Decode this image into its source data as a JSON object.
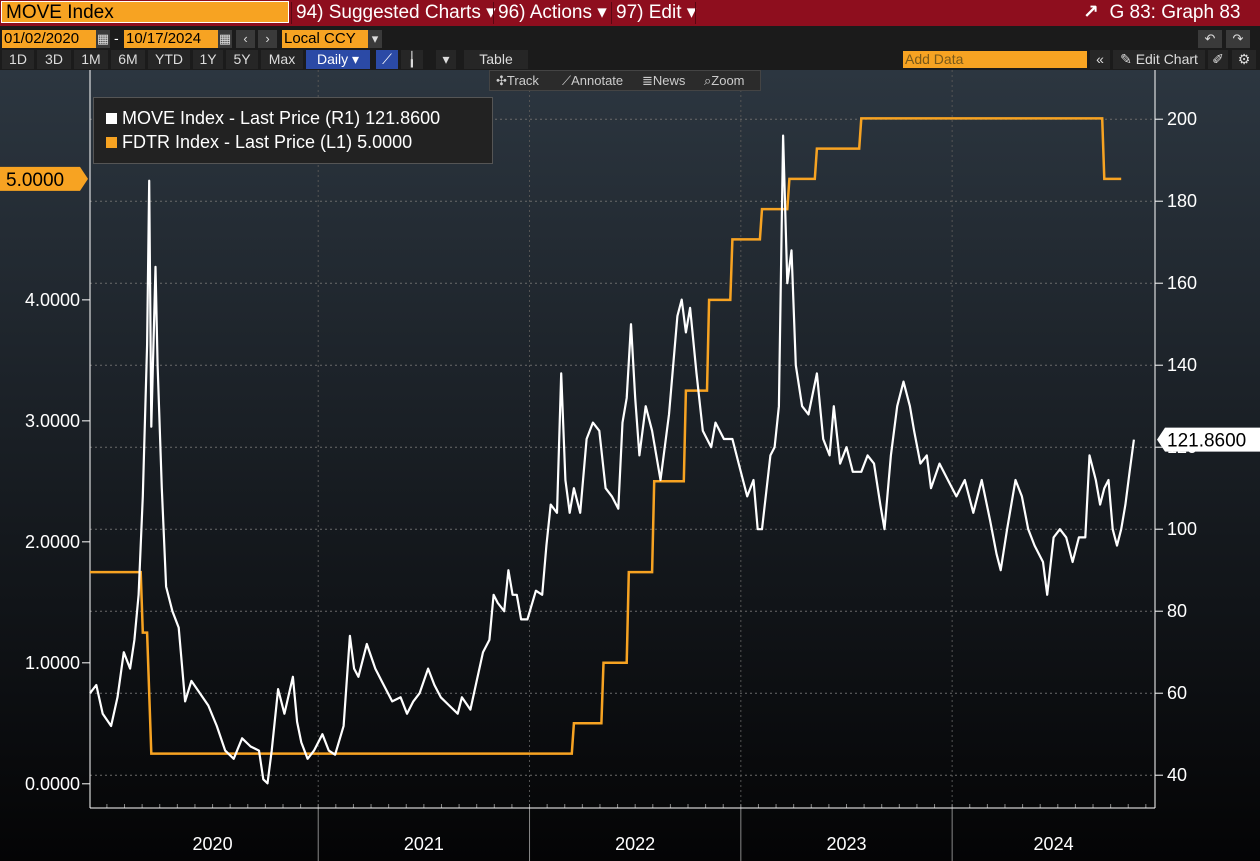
{
  "toolbar": {
    "command": "MOVE Index",
    "suggested": "94) Suggested Charts",
    "actions": "96) Actions",
    "edit": "97) Edit",
    "graph": "G 83: Graph 83",
    "start_date": "01/02/2020",
    "end_date": "10/17/2024",
    "dash": "-",
    "currency": "Local CCY",
    "periods": [
      "1D",
      "3D",
      "1M",
      "6M",
      "YTD",
      "1Y",
      "5Y",
      "Max"
    ],
    "frequency": "Daily",
    "table": "Table",
    "add_data_placeholder": "Add Data",
    "edit_chart": "Edit Chart",
    "tools": [
      "Track",
      "Annotate",
      "News",
      "Zoom"
    ]
  },
  "colors": {
    "move": "#ffffff",
    "fdtr": "#f7a322",
    "background": "#000000",
    "grid": "#666666"
  },
  "chart_data": {
    "type": "line",
    "legend": [
      {
        "text": "MOVE Index - Last Price (R1) 121.8600",
        "color": "#ffffff"
      },
      {
        "text": "FDTR Index - Last Price (L1) 5.0000",
        "color": "#f7a322"
      }
    ],
    "last_labels": {
      "left": "5.0000",
      "right": "121.8600"
    },
    "left_axis": {
      "range": [
        -0.2,
        5.9
      ],
      "ticks": [
        "0.0000",
        "1.0000",
        "2.0000",
        "3.0000",
        "4.0000"
      ]
    },
    "right_axis": {
      "range": [
        32,
        212
      ],
      "ticks": [
        "40",
        "60",
        "80",
        "100",
        "120",
        "140",
        "160",
        "180",
        "200"
      ]
    },
    "x_range": [
      2019.92,
      2024.96
    ],
    "x_labels": [
      "2020",
      "2021",
      "2022",
      "2023",
      "2024"
    ],
    "series": [
      {
        "name": "MOVE Index - Last Price",
        "axis": "right",
        "points": [
          [
            2019.92,
            60
          ],
          [
            2019.95,
            62
          ],
          [
            2019.98,
            55
          ],
          [
            2020.02,
            52
          ],
          [
            2020.05,
            59
          ],
          [
            2020.08,
            70
          ],
          [
            2020.11,
            66
          ],
          [
            2020.13,
            73
          ],
          [
            2020.15,
            84
          ],
          [
            2020.17,
            108
          ],
          [
            2020.19,
            145
          ],
          [
            2020.2,
            185
          ],
          [
            2020.21,
            125
          ],
          [
            2020.23,
            164
          ],
          [
            2020.24,
            140
          ],
          [
            2020.26,
            110
          ],
          [
            2020.28,
            86
          ],
          [
            2020.31,
            80
          ],
          [
            2020.34,
            76
          ],
          [
            2020.37,
            58
          ],
          [
            2020.4,
            63
          ],
          [
            2020.44,
            60
          ],
          [
            2020.48,
            57
          ],
          [
            2020.52,
            52
          ],
          [
            2020.56,
            46
          ],
          [
            2020.6,
            44
          ],
          [
            2020.64,
            49
          ],
          [
            2020.68,
            47
          ],
          [
            2020.72,
            46
          ],
          [
            2020.74,
            39
          ],
          [
            2020.76,
            38
          ],
          [
            2020.78,
            46
          ],
          [
            2020.81,
            61
          ],
          [
            2020.84,
            55
          ],
          [
            2020.88,
            64
          ],
          [
            2020.9,
            53
          ],
          [
            2020.92,
            48
          ],
          [
            2020.95,
            44
          ],
          [
            2020.98,
            46
          ],
          [
            2021.02,
            50
          ],
          [
            2021.05,
            46
          ],
          [
            2021.08,
            45
          ],
          [
            2021.12,
            52
          ],
          [
            2021.15,
            74
          ],
          [
            2021.17,
            66
          ],
          [
            2021.19,
            64
          ],
          [
            2021.23,
            72
          ],
          [
            2021.27,
            66
          ],
          [
            2021.31,
            62
          ],
          [
            2021.35,
            58
          ],
          [
            2021.39,
            59
          ],
          [
            2021.42,
            55
          ],
          [
            2021.45,
            58
          ],
          [
            2021.48,
            60
          ],
          [
            2021.52,
            66
          ],
          [
            2021.55,
            62
          ],
          [
            2021.58,
            59
          ],
          [
            2021.62,
            57
          ],
          [
            2021.66,
            55
          ],
          [
            2021.68,
            59
          ],
          [
            2021.72,
            56
          ],
          [
            2021.75,
            63
          ],
          [
            2021.78,
            70
          ],
          [
            2021.81,
            73
          ],
          [
            2021.83,
            84
          ],
          [
            2021.85,
            82
          ],
          [
            2021.88,
            80
          ],
          [
            2021.9,
            90
          ],
          [
            2021.92,
            84
          ],
          [
            2021.94,
            84
          ],
          [
            2021.96,
            78
          ],
          [
            2021.99,
            78
          ],
          [
            2022.03,
            85
          ],
          [
            2022.06,
            84
          ],
          [
            2022.08,
            96
          ],
          [
            2022.1,
            106
          ],
          [
            2022.13,
            104
          ],
          [
            2022.15,
            138
          ],
          [
            2022.17,
            112
          ],
          [
            2022.19,
            104
          ],
          [
            2022.21,
            110
          ],
          [
            2022.24,
            104
          ],
          [
            2022.27,
            122
          ],
          [
            2022.3,
            126
          ],
          [
            2022.33,
            124
          ],
          [
            2022.36,
            110
          ],
          [
            2022.39,
            108
          ],
          [
            2022.42,
            105
          ],
          [
            2022.44,
            126
          ],
          [
            2022.46,
            132
          ],
          [
            2022.48,
            150
          ],
          [
            2022.5,
            132
          ],
          [
            2022.52,
            118
          ],
          [
            2022.55,
            130
          ],
          [
            2022.58,
            124
          ],
          [
            2022.62,
            112
          ],
          [
            2022.66,
            128
          ],
          [
            2022.7,
            152
          ],
          [
            2022.72,
            156
          ],
          [
            2022.74,
            148
          ],
          [
            2022.76,
            154
          ],
          [
            2022.79,
            138
          ],
          [
            2022.82,
            124
          ],
          [
            2022.86,
            120
          ],
          [
            2022.88,
            126
          ],
          [
            2022.92,
            122
          ],
          [
            2022.96,
            122
          ],
          [
            2022.99,
            116
          ],
          [
            2023.03,
            108
          ],
          [
            2023.06,
            112
          ],
          [
            2023.08,
            100
          ],
          [
            2023.1,
            100
          ],
          [
            2023.14,
            118
          ],
          [
            2023.16,
            120
          ],
          [
            2023.18,
            130
          ],
          [
            2023.2,
            196
          ],
          [
            2023.22,
            160
          ],
          [
            2023.24,
            168
          ],
          [
            2023.26,
            140
          ],
          [
            2023.29,
            130
          ],
          [
            2023.32,
            128
          ],
          [
            2023.36,
            138
          ],
          [
            2023.39,
            122
          ],
          [
            2023.42,
            118
          ],
          [
            2023.44,
            130
          ],
          [
            2023.47,
            116
          ],
          [
            2023.5,
            120
          ],
          [
            2023.53,
            114
          ],
          [
            2023.57,
            114
          ],
          [
            2023.6,
            118
          ],
          [
            2023.63,
            116
          ],
          [
            2023.66,
            106
          ],
          [
            2023.68,
            100
          ],
          [
            2023.71,
            118
          ],
          [
            2023.74,
            130
          ],
          [
            2023.77,
            136
          ],
          [
            2023.8,
            130
          ],
          [
            2023.82,
            124
          ],
          [
            2023.85,
            116
          ],
          [
            2023.88,
            118
          ],
          [
            2023.9,
            110
          ],
          [
            2023.94,
            116
          ],
          [
            2023.98,
            112
          ],
          [
            2024.02,
            108
          ],
          [
            2024.06,
            112
          ],
          [
            2024.1,
            104
          ],
          [
            2024.14,
            112
          ],
          [
            2024.18,
            102
          ],
          [
            2024.21,
            94
          ],
          [
            2024.23,
            90
          ],
          [
            2024.26,
            100
          ],
          [
            2024.3,
            112
          ],
          [
            2024.33,
            108
          ],
          [
            2024.36,
            100
          ],
          [
            2024.39,
            96
          ],
          [
            2024.43,
            92
          ],
          [
            2024.45,
            84
          ],
          [
            2024.48,
            98
          ],
          [
            2024.51,
            100
          ],
          [
            2024.54,
            98
          ],
          [
            2024.57,
            92
          ],
          [
            2024.6,
            98
          ],
          [
            2024.63,
            98
          ],
          [
            2024.65,
            118
          ],
          [
            2024.68,
            112
          ],
          [
            2024.7,
            106
          ],
          [
            2024.72,
            110
          ],
          [
            2024.74,
            112
          ],
          [
            2024.76,
            100
          ],
          [
            2024.78,
            96
          ],
          [
            2024.8,
            100
          ],
          [
            2024.82,
            106
          ],
          [
            2024.84,
            114
          ],
          [
            2024.85,
            118
          ],
          [
            2024.86,
            121.86
          ]
        ]
      },
      {
        "name": "FDTR Index - Last Price",
        "axis": "left",
        "points": [
          [
            2019.92,
            1.75
          ],
          [
            2020.16,
            1.75
          ],
          [
            2020.17,
            1.25
          ],
          [
            2020.19,
            1.25
          ],
          [
            2020.21,
            0.25
          ],
          [
            2021.2,
            0.25
          ],
          [
            2022.2,
            0.25
          ],
          [
            2022.21,
            0.5
          ],
          [
            2022.34,
            0.5
          ],
          [
            2022.35,
            1.0
          ],
          [
            2022.46,
            1.0
          ],
          [
            2022.47,
            1.75
          ],
          [
            2022.58,
            1.75
          ],
          [
            2022.59,
            2.5
          ],
          [
            2022.73,
            2.5
          ],
          [
            2022.74,
            3.25
          ],
          [
            2022.84,
            3.25
          ],
          [
            2022.85,
            4.0
          ],
          [
            2022.95,
            4.0
          ],
          [
            2022.96,
            4.5
          ],
          [
            2023.09,
            4.5
          ],
          [
            2023.1,
            4.75
          ],
          [
            2023.22,
            4.75
          ],
          [
            2023.23,
            5.0
          ],
          [
            2023.35,
            5.0
          ],
          [
            2023.36,
            5.25
          ],
          [
            2023.56,
            5.25
          ],
          [
            2023.57,
            5.5
          ],
          [
            2024.71,
            5.5
          ],
          [
            2024.72,
            5.0
          ],
          [
            2024.8,
            5.0
          ]
        ]
      }
    ]
  }
}
